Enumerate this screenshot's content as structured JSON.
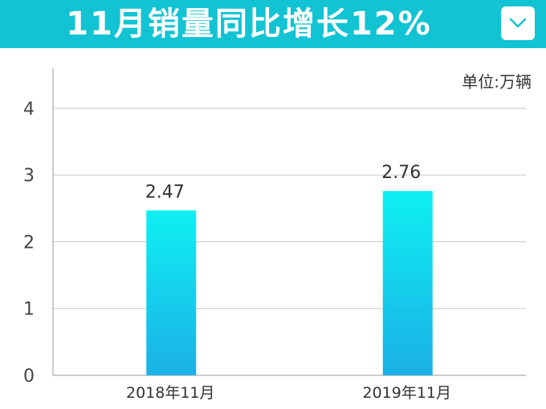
{
  "header": {
    "title": "11月销量同比增长12%",
    "menu_icon": "chevron-down-icon",
    "background_color": "#12c3d3"
  },
  "unit_label": "单位:万辆",
  "chart_data": {
    "type": "bar",
    "title": "11月销量同比增长12%",
    "categories": [
      "2018年11月",
      "2019年11月"
    ],
    "values": [
      2.47,
      2.76
    ],
    "data_labels": [
      "2.47",
      "2.76"
    ],
    "ylim": [
      0,
      4.6
    ],
    "yticks": [
      0,
      1,
      2,
      3,
      4
    ],
    "ytick_labels": [
      "0",
      "1",
      "2",
      "3",
      "4"
    ],
    "grid": true,
    "xlabel": "",
    "ylabel": "",
    "unit": "单位:万辆",
    "bar_gradient": [
      "#0ef0f2",
      "#1bb0e6"
    ]
  }
}
